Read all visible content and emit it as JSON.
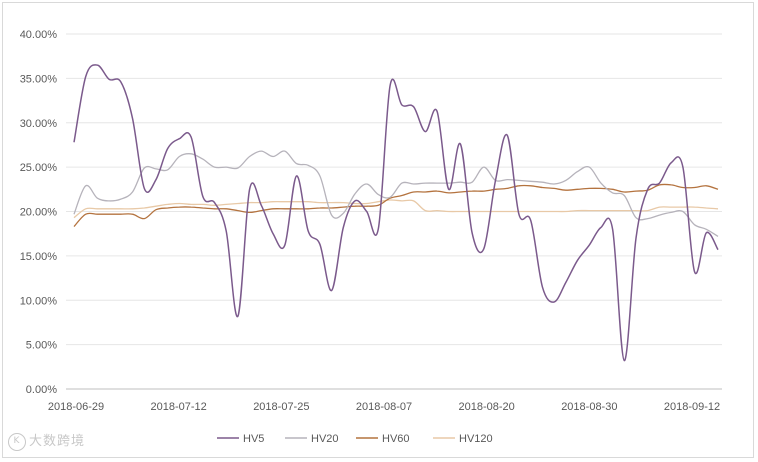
{
  "chart_data": {
    "type": "line",
    "title": "",
    "xlabel": "",
    "ylabel": "",
    "ylim": [
      0,
      0.4
    ],
    "y_ticks": [
      "0.00%",
      "5.00%",
      "10.00%",
      "15.00%",
      "20.00%",
      "25.00%",
      "30.00%",
      "35.00%",
      "40.00%"
    ],
    "y_tick_values": [
      0,
      0.05,
      0.1,
      0.15,
      0.2,
      0.25,
      0.3,
      0.35,
      0.4
    ],
    "x_ticks": [
      "2018-06-29",
      "2018-07-12",
      "2018-07-25",
      "2018-08-07",
      "2018-08-20",
      "2018-08-30",
      "2018-09-12"
    ],
    "grid": "horizontal",
    "legend": "bottom",
    "series": [
      {
        "name": "HV5",
        "color": "#7b5a8c",
        "values": [
          0.278,
          0.352,
          0.365,
          0.349,
          0.346,
          0.305,
          0.226,
          0.236,
          0.271,
          0.282,
          0.284,
          0.217,
          0.21,
          0.178,
          0.082,
          0.225,
          0.207,
          0.175,
          0.162,
          0.24,
          0.178,
          0.163,
          0.111,
          0.182,
          0.212,
          0.2,
          0.181,
          0.342,
          0.32,
          0.318,
          0.29,
          0.313,
          0.225,
          0.276,
          0.176,
          0.158,
          0.235,
          0.286,
          0.197,
          0.19,
          0.115,
          0.098,
          0.12,
          0.145,
          0.162,
          0.182,
          0.18,
          0.032,
          0.17,
          0.225,
          0.232,
          0.255,
          0.25,
          0.132,
          0.176,
          0.157
        ]
      },
      {
        "name": "HV20",
        "color": "#b6b3bb",
        "values": [
          0.197,
          0.229,
          0.215,
          0.212,
          0.214,
          0.222,
          0.249,
          0.248,
          0.247,
          0.262,
          0.265,
          0.259,
          0.25,
          0.25,
          0.249,
          0.262,
          0.268,
          0.262,
          0.268,
          0.254,
          0.252,
          0.24,
          0.196,
          0.198,
          0.22,
          0.231,
          0.219,
          0.216,
          0.232,
          0.231,
          0.232,
          0.232,
          0.232,
          0.233,
          0.233,
          0.25,
          0.235,
          0.236,
          0.235,
          0.234,
          0.233,
          0.231,
          0.235,
          0.245,
          0.25,
          0.232,
          0.221,
          0.218,
          0.193,
          0.192,
          0.196,
          0.199,
          0.2,
          0.185,
          0.18,
          0.172
        ]
      },
      {
        "name": "HV60",
        "color": "#b4733f",
        "values": [
          0.183,
          0.197,
          0.197,
          0.197,
          0.197,
          0.197,
          0.192,
          0.202,
          0.204,
          0.205,
          0.205,
          0.204,
          0.203,
          0.203,
          0.201,
          0.199,
          0.201,
          0.203,
          0.203,
          0.203,
          0.203,
          0.204,
          0.204,
          0.205,
          0.206,
          0.206,
          0.207,
          0.215,
          0.218,
          0.222,
          0.222,
          0.223,
          0.221,
          0.222,
          0.223,
          0.223,
          0.225,
          0.226,
          0.229,
          0.229,
          0.227,
          0.226,
          0.224,
          0.225,
          0.226,
          0.226,
          0.225,
          0.222,
          0.223,
          0.224,
          0.23,
          0.23,
          0.227,
          0.227,
          0.229,
          0.225
        ]
      },
      {
        "name": "HV120",
        "color": "#e8c9a7",
        "values": [
          0.193,
          0.203,
          0.203,
          0.203,
          0.203,
          0.203,
          0.204,
          0.206,
          0.208,
          0.209,
          0.208,
          0.208,
          0.207,
          0.208,
          0.209,
          0.21,
          0.21,
          0.211,
          0.211,
          0.211,
          0.211,
          0.21,
          0.21,
          0.21,
          0.209,
          0.209,
          0.211,
          0.213,
          0.212,
          0.212,
          0.201,
          0.201,
          0.2,
          0.2,
          0.2,
          0.2,
          0.2,
          0.2,
          0.2,
          0.2,
          0.2,
          0.2,
          0.2,
          0.201,
          0.201,
          0.201,
          0.201,
          0.201,
          0.201,
          0.201,
          0.205,
          0.205,
          0.205,
          0.205,
          0.204,
          0.203
        ]
      }
    ]
  },
  "watermark": {
    "mark": "K",
    "text": "大数跨境"
  }
}
